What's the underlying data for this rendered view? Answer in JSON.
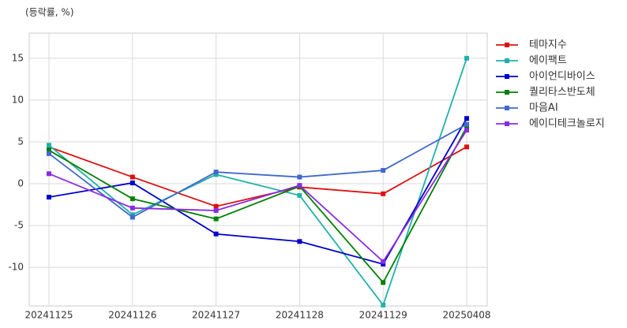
{
  "chart_data": {
    "type": "line",
    "subtitle": "(등락률, %)",
    "categories": [
      "20241125",
      "20241126",
      "20241127",
      "20241128",
      "20241129",
      "20250408"
    ],
    "series": [
      {
        "name": "테마지수",
        "color": "#dd1111",
        "values": [
          4.4,
          0.8,
          -2.7,
          -0.4,
          -1.2,
          4.4
        ]
      },
      {
        "name": "에이팩트",
        "color": "#20b2aa",
        "values": [
          4.6,
          -3.7,
          1.1,
          -1.4,
          -14.5,
          15.0
        ]
      },
      {
        "name": "아이언디바이스",
        "color": "#0000cc",
        "values": [
          -1.6,
          0.1,
          -6.0,
          -6.9,
          -9.6,
          7.8
        ]
      },
      {
        "name": "퀄리타스반도체",
        "color": "#008000",
        "values": [
          4.0,
          -1.8,
          -4.2,
          -0.3,
          -11.8,
          6.8
        ]
      },
      {
        "name": "마음AI",
        "color": "#4169cc",
        "values": [
          3.6,
          -4.0,
          1.4,
          0.8,
          1.6,
          7.1
        ]
      },
      {
        "name": "에이디테크놀로지",
        "color": "#8a2be2",
        "values": [
          1.2,
          -2.9,
          -3.2,
          -0.2,
          -9.3,
          6.4
        ]
      }
    ],
    "ylim": [
      -14.6,
      18
    ],
    "yticks": [
      -10,
      -5,
      0,
      5,
      10,
      15
    ],
    "grid": true,
    "legend": "right"
  }
}
